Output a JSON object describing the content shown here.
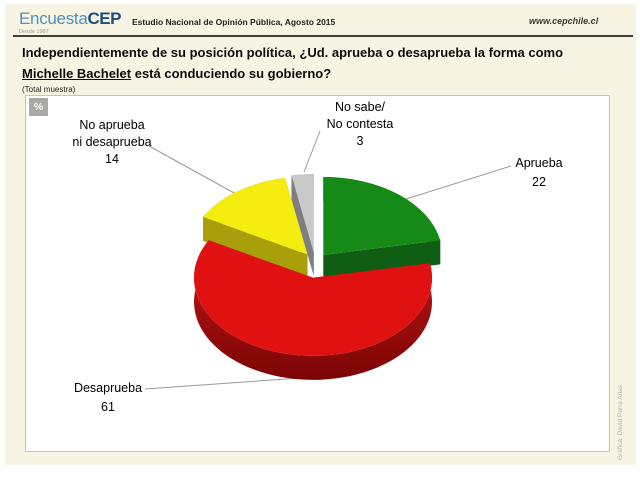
{
  "header": {
    "logo_primary": "Encuesta",
    "logo_secondary": "CEP",
    "logo_tagline": "Desde 1987",
    "subtitle": "Estudio Nacional de Opinión Pública, Agosto 2015",
    "website": "www.cepchile.cl"
  },
  "question": {
    "line1": "Independientemente de su posición política, ¿Ud. aprueba o desaprueba la forma como",
    "underlined": "Michelle Bachelet",
    "line2_rest": " está conduciendo su gobierno?",
    "note": "(Total muestra)"
  },
  "chart_panel": {
    "unit_badge": "%",
    "credit": "Gráfica: David Parra Arias"
  },
  "chart_data": {
    "type": "pie",
    "style": "3d-exploded",
    "title": "Independientemente de su posición política, ¿Ud. aprueba o desaprueba la forma como Michelle Bachelet está conduciendo su gobierno? (Total muestra)",
    "unit": "%",
    "start_angle_deg": 0,
    "direction": "clockwise",
    "segments": [
      {
        "label": "Aprueba",
        "value": 22,
        "callout_lines": [
          "Aprueba"
        ],
        "color": "#168a16",
        "side_color": "#0b4f10",
        "cut_color": "#0f5e14"
      },
      {
        "label": "Desaprueba",
        "value": 61,
        "callout_lines": [
          "Desaprueba"
        ],
        "color": "#df1111",
        "side_color": "#8e0808",
        "cut_color": "#a50d0d",
        "side_gradient": [
          "#c41616",
          "#7c0505"
        ]
      },
      {
        "label": "No aprueba ni desaprueba",
        "value": 14,
        "callout_lines": [
          "No aprueba",
          "ni desaprueba"
        ],
        "color": "#f5ec10",
        "side_color": "#9a930a",
        "cut_color": "#a89f0b"
      },
      {
        "label": "No sabe/ No contesta",
        "value": 3,
        "callout_lines": [
          "No sabe/",
          "No contesta"
        ],
        "color": "#c9c9c9",
        "side_color": "#8b8b8b",
        "cut_color": "#7e7e7e"
      }
    ]
  }
}
